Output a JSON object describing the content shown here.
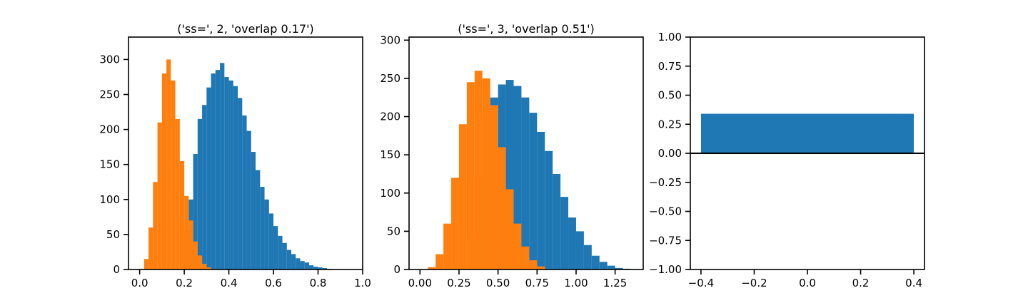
{
  "colors": {
    "series_a": "#1f77b4",
    "series_b": "#ff7f0e",
    "axis": "#000000",
    "background": "#ffffff"
  },
  "chart_data": [
    {
      "type": "bar",
      "subtype": "histogram-overlay",
      "title": "('ss=', 2, 'overlap 0.17')",
      "xlabel": "",
      "ylabel": "",
      "xlim": [
        -0.05,
        1.0
      ],
      "ylim": [
        0,
        332
      ],
      "xticks": [
        0.0,
        0.2,
        0.4,
        0.6,
        0.8,
        1.0
      ],
      "xtick_labels": [
        "0.0",
        "0.2",
        "0.4",
        "0.6",
        "0.8",
        "1.0"
      ],
      "yticks": [
        0,
        50,
        100,
        150,
        200,
        250,
        300
      ],
      "ytick_labels": [
        "0",
        "50",
        "100",
        "150",
        "200",
        "250",
        "300"
      ],
      "grid": false,
      "series": [
        {
          "color": "#1f77b4",
          "x": [
            0.2,
            0.22,
            0.24,
            0.26,
            0.28,
            0.3,
            0.32,
            0.34,
            0.36,
            0.38,
            0.4,
            0.42,
            0.44,
            0.46,
            0.48,
            0.5,
            0.52,
            0.54,
            0.56,
            0.58,
            0.6,
            0.62,
            0.64,
            0.66,
            0.68,
            0.7,
            0.72,
            0.74,
            0.76,
            0.78,
            0.8,
            0.82,
            0.84
          ],
          "values": [
            55,
            100,
            165,
            215,
            235,
            260,
            280,
            285,
            295,
            275,
            270,
            262,
            245,
            220,
            198,
            168,
            142,
            118,
            100,
            80,
            62,
            48,
            38,
            28,
            22,
            16,
            12,
            10,
            6,
            4,
            3,
            2,
            1
          ]
        },
        {
          "color": "#ff7f0e",
          "x": [
            0.0,
            0.02,
            0.04,
            0.06,
            0.08,
            0.1,
            0.12,
            0.14,
            0.16,
            0.18,
            0.2,
            0.22,
            0.24,
            0.26,
            0.28,
            0.3,
            0.32
          ],
          "values": [
            1,
            15,
            60,
            125,
            210,
            280,
            300,
            270,
            215,
            155,
            105,
            70,
            40,
            20,
            8,
            3,
            1
          ]
        }
      ]
    },
    {
      "type": "bar",
      "subtype": "histogram-overlay",
      "title": "('ss=', 3, 'overlap 0.51')",
      "xlabel": "",
      "ylabel": "",
      "xlim": [
        -0.07,
        1.43
      ],
      "ylim": [
        0,
        304
      ],
      "xticks": [
        0.0,
        0.25,
        0.5,
        0.75,
        1.0,
        1.25
      ],
      "xtick_labels": [
        "0.00",
        "0.25",
        "0.50",
        "0.75",
        "1.00",
        "1.25"
      ],
      "yticks": [
        0,
        50,
        100,
        150,
        200,
        250,
        300
      ],
      "ytick_labels": [
        "0",
        "50",
        "100",
        "150",
        "200",
        "250",
        "300"
      ],
      "grid": false,
      "series": [
        {
          "color": "#1f77b4",
          "x": [
            0.3,
            0.35,
            0.4,
            0.45,
            0.5,
            0.55,
            0.6,
            0.65,
            0.7,
            0.75,
            0.8,
            0.85,
            0.9,
            0.95,
            1.0,
            1.05,
            1.1,
            1.15,
            1.2,
            1.25,
            1.3
          ],
          "values": [
            40,
            120,
            200,
            225,
            242,
            248,
            240,
            225,
            205,
            180,
            155,
            125,
            95,
            68,
            50,
            32,
            18,
            10,
            5,
            2,
            1
          ]
        },
        {
          "color": "#ff7f0e",
          "x": [
            0.05,
            0.1,
            0.15,
            0.2,
            0.25,
            0.3,
            0.35,
            0.4,
            0.45,
            0.5,
            0.55,
            0.6,
            0.65,
            0.7,
            0.75
          ],
          "values": [
            3,
            20,
            60,
            120,
            190,
            245,
            260,
            250,
            215,
            160,
            105,
            60,
            30,
            12,
            4
          ]
        }
      ]
    },
    {
      "type": "bar",
      "title": "",
      "xlabel": "",
      "ylabel": "",
      "xlim": [
        -0.44,
        0.44
      ],
      "ylim": [
        -1.0,
        1.0
      ],
      "xticks": [
        -0.4,
        -0.2,
        0.0,
        0.2,
        0.4
      ],
      "xtick_labels": [
        "−0.4",
        "−0.2",
        "0.0",
        "0.2",
        "0.4"
      ],
      "yticks": [
        -1.0,
        -0.75,
        -0.5,
        -0.25,
        0.0,
        0.25,
        0.5,
        0.75,
        1.0
      ],
      "ytick_labels": [
        "−1.00",
        "−0.75",
        "−0.50",
        "−0.25",
        "0.00",
        "0.25",
        "0.50",
        "0.75",
        "1.00"
      ],
      "categories": [
        0
      ],
      "values": [
        0.34
      ],
      "bar_width": 0.8,
      "baseline": 0,
      "grid": false
    }
  ]
}
